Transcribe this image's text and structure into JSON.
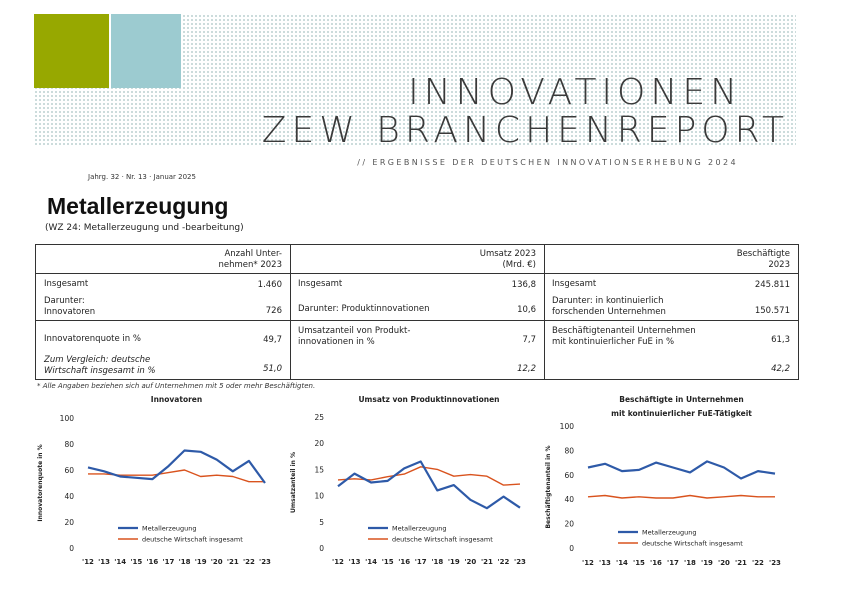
{
  "header": {
    "title_line1": "INNOVATIONEN",
    "title_line2": "ZEW BRANCHENREPORT",
    "subtitle": "// ERGEBNISSE DER DEUTSCHEN INNOVATIONSERHEBUNG 2024",
    "issue": "Jahrg. 32 · Nr. 13 · Januar 2025",
    "colors": {
      "green_block": "#97a800",
      "teal_block": "#9ccbd0"
    }
  },
  "page": {
    "heading": "Metallerzeugung",
    "subheading": "(WZ 24: Metallerzeugung und -bearbeitung)"
  },
  "table": {
    "col1": {
      "header_line1": "Anzahl Unter-",
      "header_line2": "nehmen* 2023",
      "rows": [
        {
          "label": "Insgesamt",
          "value": "1.460"
        },
        {
          "label_line1": "Darunter:",
          "label_line2": "Innovatoren",
          "value": "726"
        },
        {
          "label": "Innovatorenquote in %",
          "value": "49,7"
        },
        {
          "label_line1": "Zum Vergleich: deutsche",
          "label_line2": "Wirtschaft insgesamt in %",
          "value": "51,0"
        }
      ]
    },
    "col2": {
      "header_line1": "Umsatz 2023",
      "header_line2": "(Mrd. €)",
      "rows": [
        {
          "label": "Insgesamt",
          "value": "136,8"
        },
        {
          "label": "Darunter: Produktinnovationen",
          "value": "10,6"
        },
        {
          "label_line1": "Umsatzanteil von Produkt-",
          "label_line2": "innovationen in %",
          "value": "7,7"
        },
        {
          "value": "12,2"
        }
      ]
    },
    "col3": {
      "header_line1": "Beschäftigte",
      "header_line2": "2023",
      "rows": [
        {
          "label": "Insgesamt",
          "value": "245.811"
        },
        {
          "label_line1": "Darunter: in kontinuierlich",
          "label_line2": "forschenden Unternehmen",
          "value": "150.571"
        },
        {
          "label_line1": "Beschäftigtenanteil Unternehmen",
          "label_line2": "mit kontinuierlicher FuE in %",
          "value": "61,3"
        },
        {
          "value": "42,2"
        }
      ]
    },
    "footnote": "* Alle Angaben beziehen sich auf Unternehmen mit 5 oder mehr Beschäftigten."
  },
  "chart_data": [
    {
      "type": "line",
      "title": "Innovatoren",
      "ylabel": "Innovatorenquote in %",
      "ylim": [
        0,
        100
      ],
      "yticks": [
        "0",
        "20",
        "40",
        "60",
        "80",
        "100"
      ],
      "x": [
        "'12",
        "'13",
        "'14",
        "'15",
        "'16",
        "'17",
        "'18",
        "'19",
        "'20",
        "'21",
        "'22",
        "'23"
      ],
      "series": [
        {
          "name": "Metallerzeugung",
          "color": "#2e5aa8",
          "values": [
            62,
            59,
            55,
            54,
            53,
            63,
            75,
            74,
            68,
            59,
            67,
            50
          ]
        },
        {
          "name": "deutsche Wirtschaft insgesamt",
          "color": "#d9531e",
          "values": [
            57,
            57,
            56,
            56,
            56,
            58,
            60,
            55,
            56,
            55,
            51,
            51
          ]
        }
      ]
    },
    {
      "type": "line",
      "title": "Umsatz von Produktinnovationen",
      "ylabel": "Umsatzanteil in %",
      "ylim": [
        0,
        25
      ],
      "yticks": [
        "0",
        "5",
        "10",
        "15",
        "20",
        "25"
      ],
      "x": [
        "'12",
        "'13",
        "'14",
        "'15",
        "'16",
        "'17",
        "'18",
        "'19",
        "'20",
        "'21",
        "'22",
        "'23"
      ],
      "series": [
        {
          "name": "Metallerzeugung",
          "color": "#2e5aa8",
          "values": [
            11.8,
            14.2,
            12.5,
            12.8,
            15.2,
            16.5,
            11.0,
            12.0,
            9.2,
            7.6,
            9.8,
            7.7
          ]
        },
        {
          "name": "deutsche Wirtschaft insgesamt",
          "color": "#d9531e",
          "values": [
            13.0,
            13.2,
            13.0,
            13.6,
            14.1,
            15.5,
            15.0,
            13.7,
            14.0,
            13.7,
            12.0,
            12.2
          ]
        }
      ]
    },
    {
      "type": "line",
      "title": "Beschäftigte in Unternehmen",
      "title_line2": "mit kontinuierlicher FuE-Tätigkeit",
      "ylabel": "Beschäftigtenanteil in %",
      "ylim": [
        0,
        100
      ],
      "yticks": [
        "0",
        "20",
        "40",
        "60",
        "80",
        "100"
      ],
      "x": [
        "'12",
        "'13",
        "'14",
        "'15",
        "'16",
        "'17",
        "'18",
        "'19",
        "'20",
        "'21",
        "'22",
        "'23"
      ],
      "series": [
        {
          "name": "Metallerzeugung",
          "color": "#2e5aa8",
          "values": [
            66,
            69,
            63,
            64,
            70,
            66,
            62,
            71,
            66,
            57,
            63,
            61
          ]
        },
        {
          "name": "deutsche Wirtschaft insgesamt",
          "color": "#d9531e",
          "values": [
            42,
            43,
            41,
            42,
            41,
            41,
            43,
            41,
            42,
            43,
            42,
            42
          ]
        }
      ]
    }
  ]
}
